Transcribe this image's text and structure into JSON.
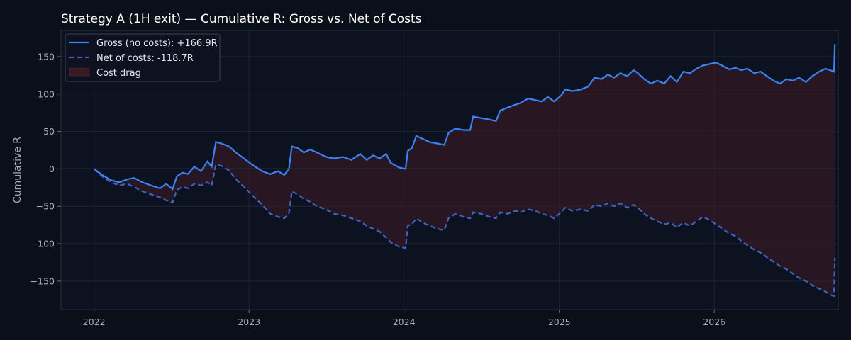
{
  "colors": {
    "background": "#0b0f19",
    "plot_background": "#0d1220",
    "axis_frame": "#2a3344",
    "grid": "#1e2636",
    "zero_line": "#4b5565",
    "text": "#a5acb8",
    "title": "#ffffff",
    "gross_line": "#3b82f6",
    "net_line": "#3d63c2",
    "cost_fill": "#3a1a24",
    "legend_bg": "#0d1220",
    "legend_border": "#3a4252"
  },
  "chart_data": {
    "type": "line",
    "title": "Strategy A (1H exit) — Cumulative R: Gross vs. Net of Costs",
    "xlabel": "",
    "ylabel": "Cumulative R",
    "x_axis": {
      "type": "date",
      "range": [
        "2021-10-15",
        "2026-10-20"
      ],
      "ticks": [
        "2022",
        "2023",
        "2024",
        "2025",
        "2026"
      ]
    },
    "y_axis": {
      "range": [
        -188,
        185
      ],
      "ticks": [
        150,
        100,
        50,
        0,
        -50,
        -100,
        -150
      ]
    },
    "grid": true,
    "legend": {
      "placement": "top-left",
      "entries": [
        {
          "label": "Gross (no costs): +166.9R",
          "style": "solid-line",
          "series": "gross"
        },
        {
          "label": "Net of costs: -118.7R",
          "style": "dashed-line",
          "series": "net"
        },
        {
          "label": "Cost drag",
          "style": "fill"
        }
      ]
    },
    "series": [
      {
        "id": "gross",
        "style": "solid",
        "points": [
          [
            "2022-01-01",
            0
          ],
          [
            "2022-01-20",
            -8
          ],
          [
            "2022-02-10",
            -15
          ],
          [
            "2022-03-01",
            -18
          ],
          [
            "2022-03-20",
            -14
          ],
          [
            "2022-04-05",
            -12
          ],
          [
            "2022-04-25",
            -18
          ],
          [
            "2022-05-15",
            -22
          ],
          [
            "2022-06-05",
            -26
          ],
          [
            "2022-06-20",
            -20
          ],
          [
            "2022-07-05",
            -27
          ],
          [
            "2022-07-15",
            -10
          ],
          [
            "2022-07-28",
            -5
          ],
          [
            "2022-08-10",
            -7
          ],
          [
            "2022-08-25",
            3
          ],
          [
            "2022-09-10",
            -3
          ],
          [
            "2022-09-25",
            10
          ],
          [
            "2022-10-05",
            3
          ],
          [
            "2022-10-15",
            36
          ],
          [
            "2022-10-28",
            34
          ],
          [
            "2022-11-15",
            30
          ],
          [
            "2022-12-01",
            22
          ],
          [
            "2022-12-20",
            14
          ],
          [
            "2023-01-10",
            5
          ],
          [
            "2023-02-01",
            -3
          ],
          [
            "2023-02-20",
            -7
          ],
          [
            "2023-03-10",
            -3
          ],
          [
            "2023-03-25",
            -8
          ],
          [
            "2023-04-05",
            0
          ],
          [
            "2023-04-12",
            30
          ],
          [
            "2023-04-25",
            28
          ],
          [
            "2023-05-10",
            22
          ],
          [
            "2023-05-25",
            26
          ],
          [
            "2023-06-10",
            22
          ],
          [
            "2023-07-01",
            16
          ],
          [
            "2023-07-20",
            14
          ],
          [
            "2023-08-10",
            16
          ],
          [
            "2023-08-30",
            12
          ],
          [
            "2023-09-20",
            20
          ],
          [
            "2023-10-05",
            12
          ],
          [
            "2023-10-20",
            18
          ],
          [
            "2023-11-05",
            14
          ],
          [
            "2023-11-20",
            20
          ],
          [
            "2023-12-01",
            8
          ],
          [
            "2023-12-20",
            2
          ],
          [
            "2024-01-05",
            0
          ],
          [
            "2024-01-10",
            24
          ],
          [
            "2024-01-20",
            28
          ],
          [
            "2024-01-30",
            44
          ],
          [
            "2024-02-15",
            40
          ],
          [
            "2024-03-01",
            36
          ],
          [
            "2024-03-20",
            34
          ],
          [
            "2024-04-05",
            32
          ],
          [
            "2024-04-15",
            48
          ],
          [
            "2024-05-01",
            54
          ],
          [
            "2024-05-20",
            52
          ],
          [
            "2024-06-05",
            52
          ],
          [
            "2024-06-12",
            70
          ],
          [
            "2024-06-30",
            68
          ],
          [
            "2024-07-20",
            66
          ],
          [
            "2024-08-05",
            64
          ],
          [
            "2024-08-15",
            78
          ],
          [
            "2024-09-01",
            82
          ],
          [
            "2024-09-20",
            86
          ],
          [
            "2024-10-01",
            88
          ],
          [
            "2024-10-20",
            94
          ],
          [
            "2024-11-05",
            92
          ],
          [
            "2024-11-20",
            90
          ],
          [
            "2024-12-05",
            96
          ],
          [
            "2024-12-20",
            90
          ],
          [
            "2025-01-05",
            98
          ],
          [
            "2025-01-15",
            106
          ],
          [
            "2025-02-01",
            104
          ],
          [
            "2025-02-20",
            106
          ],
          [
            "2025-03-10",
            110
          ],
          [
            "2025-03-25",
            122
          ],
          [
            "2025-04-10",
            120
          ],
          [
            "2025-04-25",
            126
          ],
          [
            "2025-05-10",
            122
          ],
          [
            "2025-05-25",
            128
          ],
          [
            "2025-06-10",
            124
          ],
          [
            "2025-06-25",
            132
          ],
          [
            "2025-07-05",
            128
          ],
          [
            "2025-07-20",
            120
          ],
          [
            "2025-08-05",
            114
          ],
          [
            "2025-08-20",
            118
          ],
          [
            "2025-09-05",
            114
          ],
          [
            "2025-09-20",
            124
          ],
          [
            "2025-10-05",
            116
          ],
          [
            "2025-10-20",
            130
          ],
          [
            "2025-11-05",
            128
          ],
          [
            "2025-11-20",
            134
          ],
          [
            "2025-12-05",
            138
          ],
          [
            "2025-12-20",
            140
          ],
          [
            "2026-01-05",
            142
          ],
          [
            "2026-01-20",
            138
          ],
          [
            "2026-02-05",
            133
          ],
          [
            "2026-02-20",
            135
          ],
          [
            "2026-03-05",
            132
          ],
          [
            "2026-03-20",
            134
          ],
          [
            "2026-04-05",
            128
          ],
          [
            "2026-04-20",
            130
          ],
          [
            "2026-05-05",
            124
          ],
          [
            "2026-05-20",
            118
          ],
          [
            "2026-06-05",
            114
          ],
          [
            "2026-06-20",
            120
          ],
          [
            "2026-07-05",
            118
          ],
          [
            "2026-07-20",
            122
          ],
          [
            "2026-08-05",
            116
          ],
          [
            "2026-08-20",
            124
          ],
          [
            "2026-09-05",
            130
          ],
          [
            "2026-09-20",
            134
          ],
          [
            "2026-10-01",
            132
          ],
          [
            "2026-10-10",
            130
          ],
          [
            "2026-10-12",
            166.9
          ]
        ]
      },
      {
        "id": "net",
        "style": "dashed",
        "points": [
          [
            "2022-01-01",
            0
          ],
          [
            "2022-01-20",
            -10
          ],
          [
            "2022-02-10",
            -18
          ],
          [
            "2022-03-01",
            -22
          ],
          [
            "2022-03-20",
            -20
          ],
          [
            "2022-04-05",
            -24
          ],
          [
            "2022-04-25",
            -30
          ],
          [
            "2022-05-15",
            -34
          ],
          [
            "2022-06-05",
            -38
          ],
          [
            "2022-06-20",
            -42
          ],
          [
            "2022-07-05",
            -45
          ],
          [
            "2022-07-15",
            -28
          ],
          [
            "2022-07-28",
            -24
          ],
          [
            "2022-08-10",
            -26
          ],
          [
            "2022-08-25",
            -20
          ],
          [
            "2022-09-10",
            -22
          ],
          [
            "2022-09-25",
            -18
          ],
          [
            "2022-10-05",
            -22
          ],
          [
            "2022-10-15",
            6
          ],
          [
            "2022-10-28",
            4
          ],
          [
            "2022-11-15",
            -2
          ],
          [
            "2022-12-01",
            -14
          ],
          [
            "2022-12-20",
            -24
          ],
          [
            "2023-01-10",
            -36
          ],
          [
            "2023-02-01",
            -48
          ],
          [
            "2023-02-20",
            -60
          ],
          [
            "2023-03-10",
            -64
          ],
          [
            "2023-03-25",
            -66
          ],
          [
            "2023-04-05",
            -60
          ],
          [
            "2023-04-12",
            -30
          ],
          [
            "2023-04-25",
            -34
          ],
          [
            "2023-05-10",
            -40
          ],
          [
            "2023-05-25",
            -44
          ],
          [
            "2023-06-10",
            -50
          ],
          [
            "2023-07-01",
            -54
          ],
          [
            "2023-07-20",
            -60
          ],
          [
            "2023-08-10",
            -62
          ],
          [
            "2023-08-30",
            -66
          ],
          [
            "2023-09-20",
            -70
          ],
          [
            "2023-10-05",
            -76
          ],
          [
            "2023-10-20",
            -80
          ],
          [
            "2023-11-05",
            -84
          ],
          [
            "2023-11-20",
            -92
          ],
          [
            "2023-12-01",
            -98
          ],
          [
            "2023-12-20",
            -104
          ],
          [
            "2024-01-05",
            -106
          ],
          [
            "2024-01-10",
            -76
          ],
          [
            "2024-01-20",
            -74
          ],
          [
            "2024-01-30",
            -66
          ],
          [
            "2024-02-15",
            -72
          ],
          [
            "2024-03-01",
            -76
          ],
          [
            "2024-03-20",
            -80
          ],
          [
            "2024-04-05",
            -82
          ],
          [
            "2024-04-15",
            -66
          ],
          [
            "2024-05-01",
            -60
          ],
          [
            "2024-05-20",
            -64
          ],
          [
            "2024-06-05",
            -66
          ],
          [
            "2024-06-12",
            -58
          ],
          [
            "2024-06-30",
            -60
          ],
          [
            "2024-07-20",
            -64
          ],
          [
            "2024-08-05",
            -66
          ],
          [
            "2024-08-15",
            -58
          ],
          [
            "2024-09-01",
            -60
          ],
          [
            "2024-09-20",
            -56
          ],
          [
            "2024-10-01",
            -58
          ],
          [
            "2024-10-20",
            -54
          ],
          [
            "2024-11-05",
            -56
          ],
          [
            "2024-11-20",
            -60
          ],
          [
            "2024-12-05",
            -62
          ],
          [
            "2024-12-20",
            -66
          ],
          [
            "2025-01-05",
            -58
          ],
          [
            "2025-01-15",
            -52
          ],
          [
            "2025-02-01",
            -56
          ],
          [
            "2025-02-20",
            -54
          ],
          [
            "2025-03-10",
            -56
          ],
          [
            "2025-03-25",
            -48
          ],
          [
            "2025-04-10",
            -50
          ],
          [
            "2025-04-25",
            -46
          ],
          [
            "2025-05-10",
            -50
          ],
          [
            "2025-05-25",
            -46
          ],
          [
            "2025-06-10",
            -52
          ],
          [
            "2025-06-25",
            -48
          ],
          [
            "2025-07-05",
            -52
          ],
          [
            "2025-07-20",
            -60
          ],
          [
            "2025-08-05",
            -66
          ],
          [
            "2025-08-20",
            -70
          ],
          [
            "2025-09-05",
            -74
          ],
          [
            "2025-09-20",
            -72
          ],
          [
            "2025-10-05",
            -78
          ],
          [
            "2025-10-20",
            -72
          ],
          [
            "2025-11-05",
            -76
          ],
          [
            "2025-11-20",
            -70
          ],
          [
            "2025-12-05",
            -64
          ],
          [
            "2025-12-20",
            -68
          ],
          [
            "2026-01-05",
            -74
          ],
          [
            "2026-01-20",
            -80
          ],
          [
            "2026-02-05",
            -86
          ],
          [
            "2026-02-20",
            -90
          ],
          [
            "2026-03-05",
            -96
          ],
          [
            "2026-03-20",
            -102
          ],
          [
            "2026-04-05",
            -108
          ],
          [
            "2026-04-20",
            -112
          ],
          [
            "2026-05-05",
            -118
          ],
          [
            "2026-05-20",
            -124
          ],
          [
            "2026-06-05",
            -130
          ],
          [
            "2026-06-20",
            -134
          ],
          [
            "2026-07-05",
            -140
          ],
          [
            "2026-07-20",
            -146
          ],
          [
            "2026-08-05",
            -150
          ],
          [
            "2026-08-20",
            -156
          ],
          [
            "2026-09-05",
            -160
          ],
          [
            "2026-09-20",
            -164
          ],
          [
            "2026-10-01",
            -168
          ],
          [
            "2026-10-10",
            -170
          ],
          [
            "2026-10-12",
            -118.7
          ]
        ]
      }
    ]
  }
}
